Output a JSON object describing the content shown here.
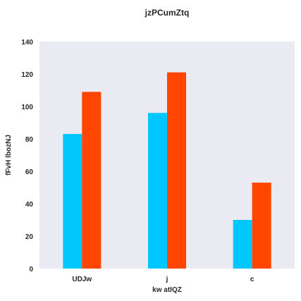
{
  "chart_data": {
    "type": "bar",
    "title": "jzPCumZtq",
    "xlabel": "kw atIQZ",
    "ylabel": "fFvH  lbozNJ",
    "categories": [
      "UDJw",
      "j",
      "c"
    ],
    "series": [
      {
        "values": [
          83,
          96,
          30
        ],
        "color": "#00c8ff"
      },
      {
        "values": [
          109,
          121,
          53
        ],
        "color": "#ff4500"
      }
    ],
    "ylim": [
      0,
      140
    ],
    "yticks": [
      0,
      20,
      40,
      60,
      80,
      100,
      120,
      140
    ],
    "grid": false,
    "plot_background": "#eaeaf2"
  }
}
